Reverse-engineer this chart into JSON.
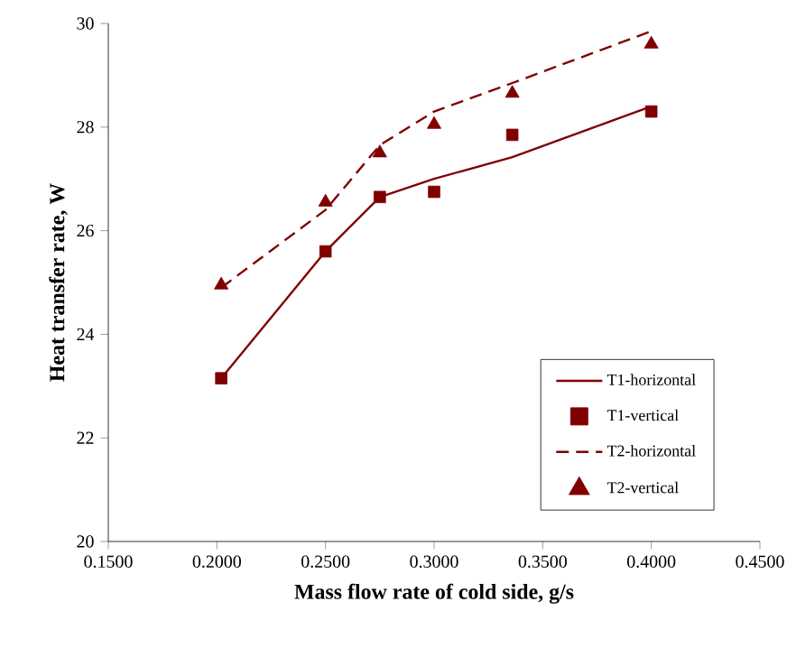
{
  "chart_data": {
    "type": "line",
    "xlabel": "Mass flow rate of cold side, g/s",
    "ylabel": "Heat transfer rate, W",
    "x": [
      0.202,
      0.25,
      0.275,
      0.3,
      0.336,
      0.4
    ],
    "series": [
      {
        "name": "T1-horizontal",
        "color": "#800000",
        "line_style": "solid",
        "marker": "none",
        "values": [
          23.15,
          25.6,
          26.65,
          27.0,
          27.42,
          28.4
        ]
      },
      {
        "name": "T1-vertical",
        "type": "scatter",
        "color": "#800000",
        "marker": "square",
        "values": [
          23.15,
          25.6,
          26.65,
          26.75,
          27.85,
          28.3
        ]
      },
      {
        "name": "T2-horizontal",
        "color": "#800000",
        "line_style": "dashed",
        "marker": "none",
        "values": [
          24.9,
          26.4,
          27.65,
          28.3,
          28.85,
          29.85
        ]
      },
      {
        "name": "T2-vertical",
        "type": "scatter",
        "color": "#800000",
        "marker": "triangle",
        "values": [
          24.95,
          26.55,
          27.5,
          28.05,
          28.65,
          29.6
        ]
      }
    ],
    "xlim": [
      0.15,
      0.45
    ],
    "xticks": [
      {
        "value": 0.15,
        "label": "0.1500"
      },
      {
        "value": 0.2,
        "label": "0.2000"
      },
      {
        "value": 0.25,
        "label": "0.2500"
      },
      {
        "value": 0.3,
        "label": "0.3000"
      },
      {
        "value": 0.35,
        "label": "0.3500"
      },
      {
        "value": 0.4,
        "label": "0.4000"
      },
      {
        "value": 0.45,
        "label": "0.4500"
      }
    ],
    "ylim": [
      20,
      30
    ],
    "yticks": [
      20,
      22,
      24,
      26,
      28,
      30
    ],
    "grid": false,
    "legend": "bottom right"
  }
}
